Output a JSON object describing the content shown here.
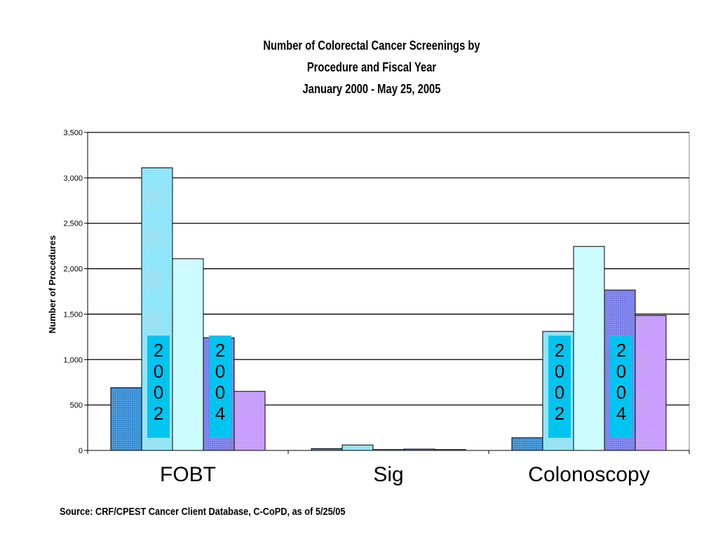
{
  "title_lines": [
    "Number of Colorectal Cancer Screenings by",
    "Procedure and Fiscal Year",
    "January 2000 - May 25, 2005"
  ],
  "source": "Source: CRF/CPEST Cancer Client Database, C-CoPD, as of 5/25/05",
  "colors": {
    "s1": "#3b8fd4",
    "s2": "#8ee4f8",
    "s3": "#ccfcff",
    "s4": "#7b7fe8",
    "s5": "#c79bff",
    "year_label_bg": "#00c4f0"
  },
  "chart_data": {
    "type": "bar",
    "title": "Number of Colorectal Cancer Screenings by Procedure and Fiscal Year January 2000 - May 25, 2005",
    "categories": [
      "FOBT",
      "Sig",
      "Colonoscopy"
    ],
    "series": [
      {
        "values": [
          690,
          20,
          140
        ]
      },
      {
        "values": [
          3110,
          60,
          1310
        ]
      },
      {
        "values": [
          2110,
          10,
          2245
        ]
      },
      {
        "values": [
          1240,
          15,
          1765
        ]
      },
      {
        "values": [
          650,
          10,
          1485
        ]
      }
    ],
    "ylabel": "Number of Procedures",
    "xlabel": "",
    "ylim": [
      0,
      3500
    ],
    "yticks": [
      0,
      500,
      1000,
      1500,
      2000,
      2500,
      3000,
      3500
    ],
    "ytick_labels": [
      "0",
      "500",
      "1,000",
      "1,500",
      "2,000",
      "2,500",
      "3,000",
      "3,500"
    ],
    "grid": true,
    "legend": "none",
    "annotations": [
      {
        "text": "2002",
        "category": "FOBT",
        "series_index": 1
      },
      {
        "text": "2004",
        "category": "FOBT",
        "series_index": 3
      },
      {
        "text": "2002",
        "category": "Colonoscopy",
        "series_index": 1
      },
      {
        "text": "2004",
        "category": "Colonoscopy",
        "series_index": 3
      }
    ]
  }
}
